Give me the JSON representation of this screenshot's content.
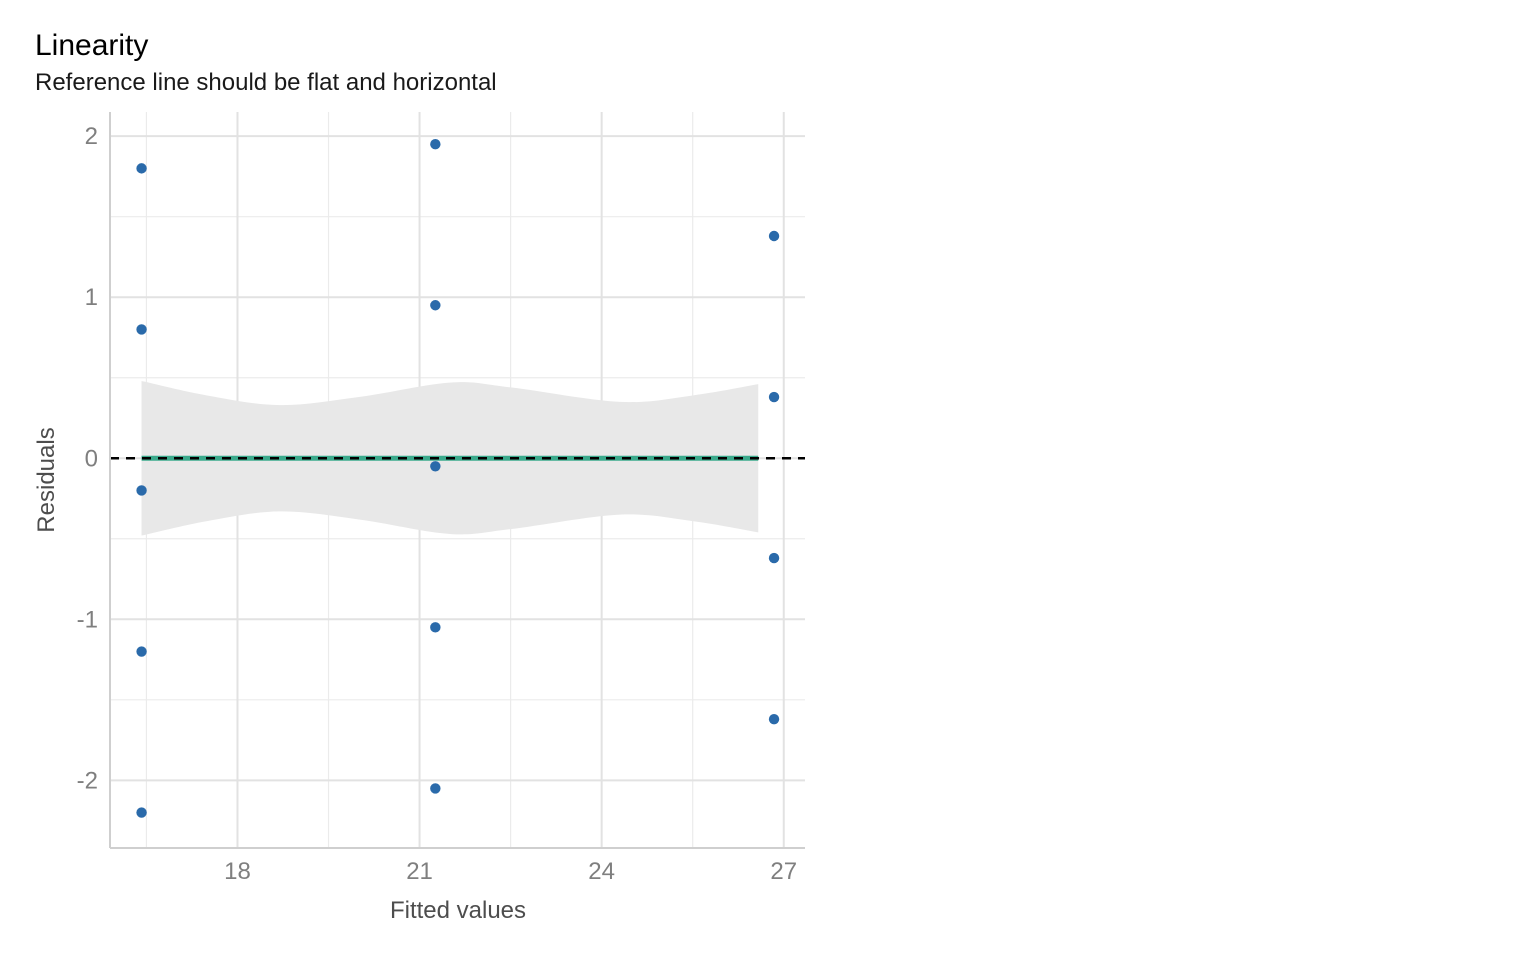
{
  "chart_data": {
    "type": "scatter",
    "title": "Linearity",
    "subtitle": "Reference line should be flat and horizontal",
    "xlabel": "Fitted values",
    "ylabel": "Residuals",
    "xlim": [
      15.9,
      27.35
    ],
    "ylim": [
      -2.42,
      2.15
    ],
    "x_ticks": [
      18,
      21,
      24,
      27
    ],
    "x_minor": [
      16.5,
      19.5,
      22.5,
      25.5
    ],
    "y_ticks": [
      2,
      1,
      0,
      -1,
      -2
    ],
    "y_minor": [
      1.5,
      0.5,
      -0.5,
      -1.5
    ],
    "grid": true,
    "reference_line": {
      "y": 0,
      "style": "dashed",
      "color": "#000000"
    },
    "smooth": {
      "color": "#3aaa8c",
      "band_color": "#e8e8e8",
      "x": [
        16.42,
        17.5,
        18.7,
        20.0,
        21.5,
        22.5,
        24.3,
        25.5,
        26.58
      ],
      "y": [
        0,
        0,
        0,
        0,
        0,
        0,
        0,
        0,
        0
      ],
      "upper": [
        0.48,
        0.39,
        0.33,
        0.38,
        0.47,
        0.44,
        0.35,
        0.39,
        0.46
      ],
      "lower": [
        -0.48,
        -0.39,
        -0.33,
        -0.38,
        -0.47,
        -0.44,
        -0.35,
        -0.39,
        -0.46
      ]
    },
    "point_color": "#2a6aaa",
    "points": [
      {
        "x": 16.42,
        "y": 1.8
      },
      {
        "x": 16.42,
        "y": 0.8
      },
      {
        "x": 16.42,
        "y": -0.2
      },
      {
        "x": 16.42,
        "y": -1.2
      },
      {
        "x": 16.42,
        "y": -2.2
      },
      {
        "x": 21.26,
        "y": 1.95
      },
      {
        "x": 21.26,
        "y": 0.95
      },
      {
        "x": 21.26,
        "y": -0.05
      },
      {
        "x": 21.26,
        "y": -1.05
      },
      {
        "x": 21.26,
        "y": -2.05
      },
      {
        "x": 26.84,
        "y": 1.38
      },
      {
        "x": 26.84,
        "y": 0.38
      },
      {
        "x": 26.84,
        "y": -0.62
      },
      {
        "x": 26.84,
        "y": -1.62
      }
    ]
  }
}
